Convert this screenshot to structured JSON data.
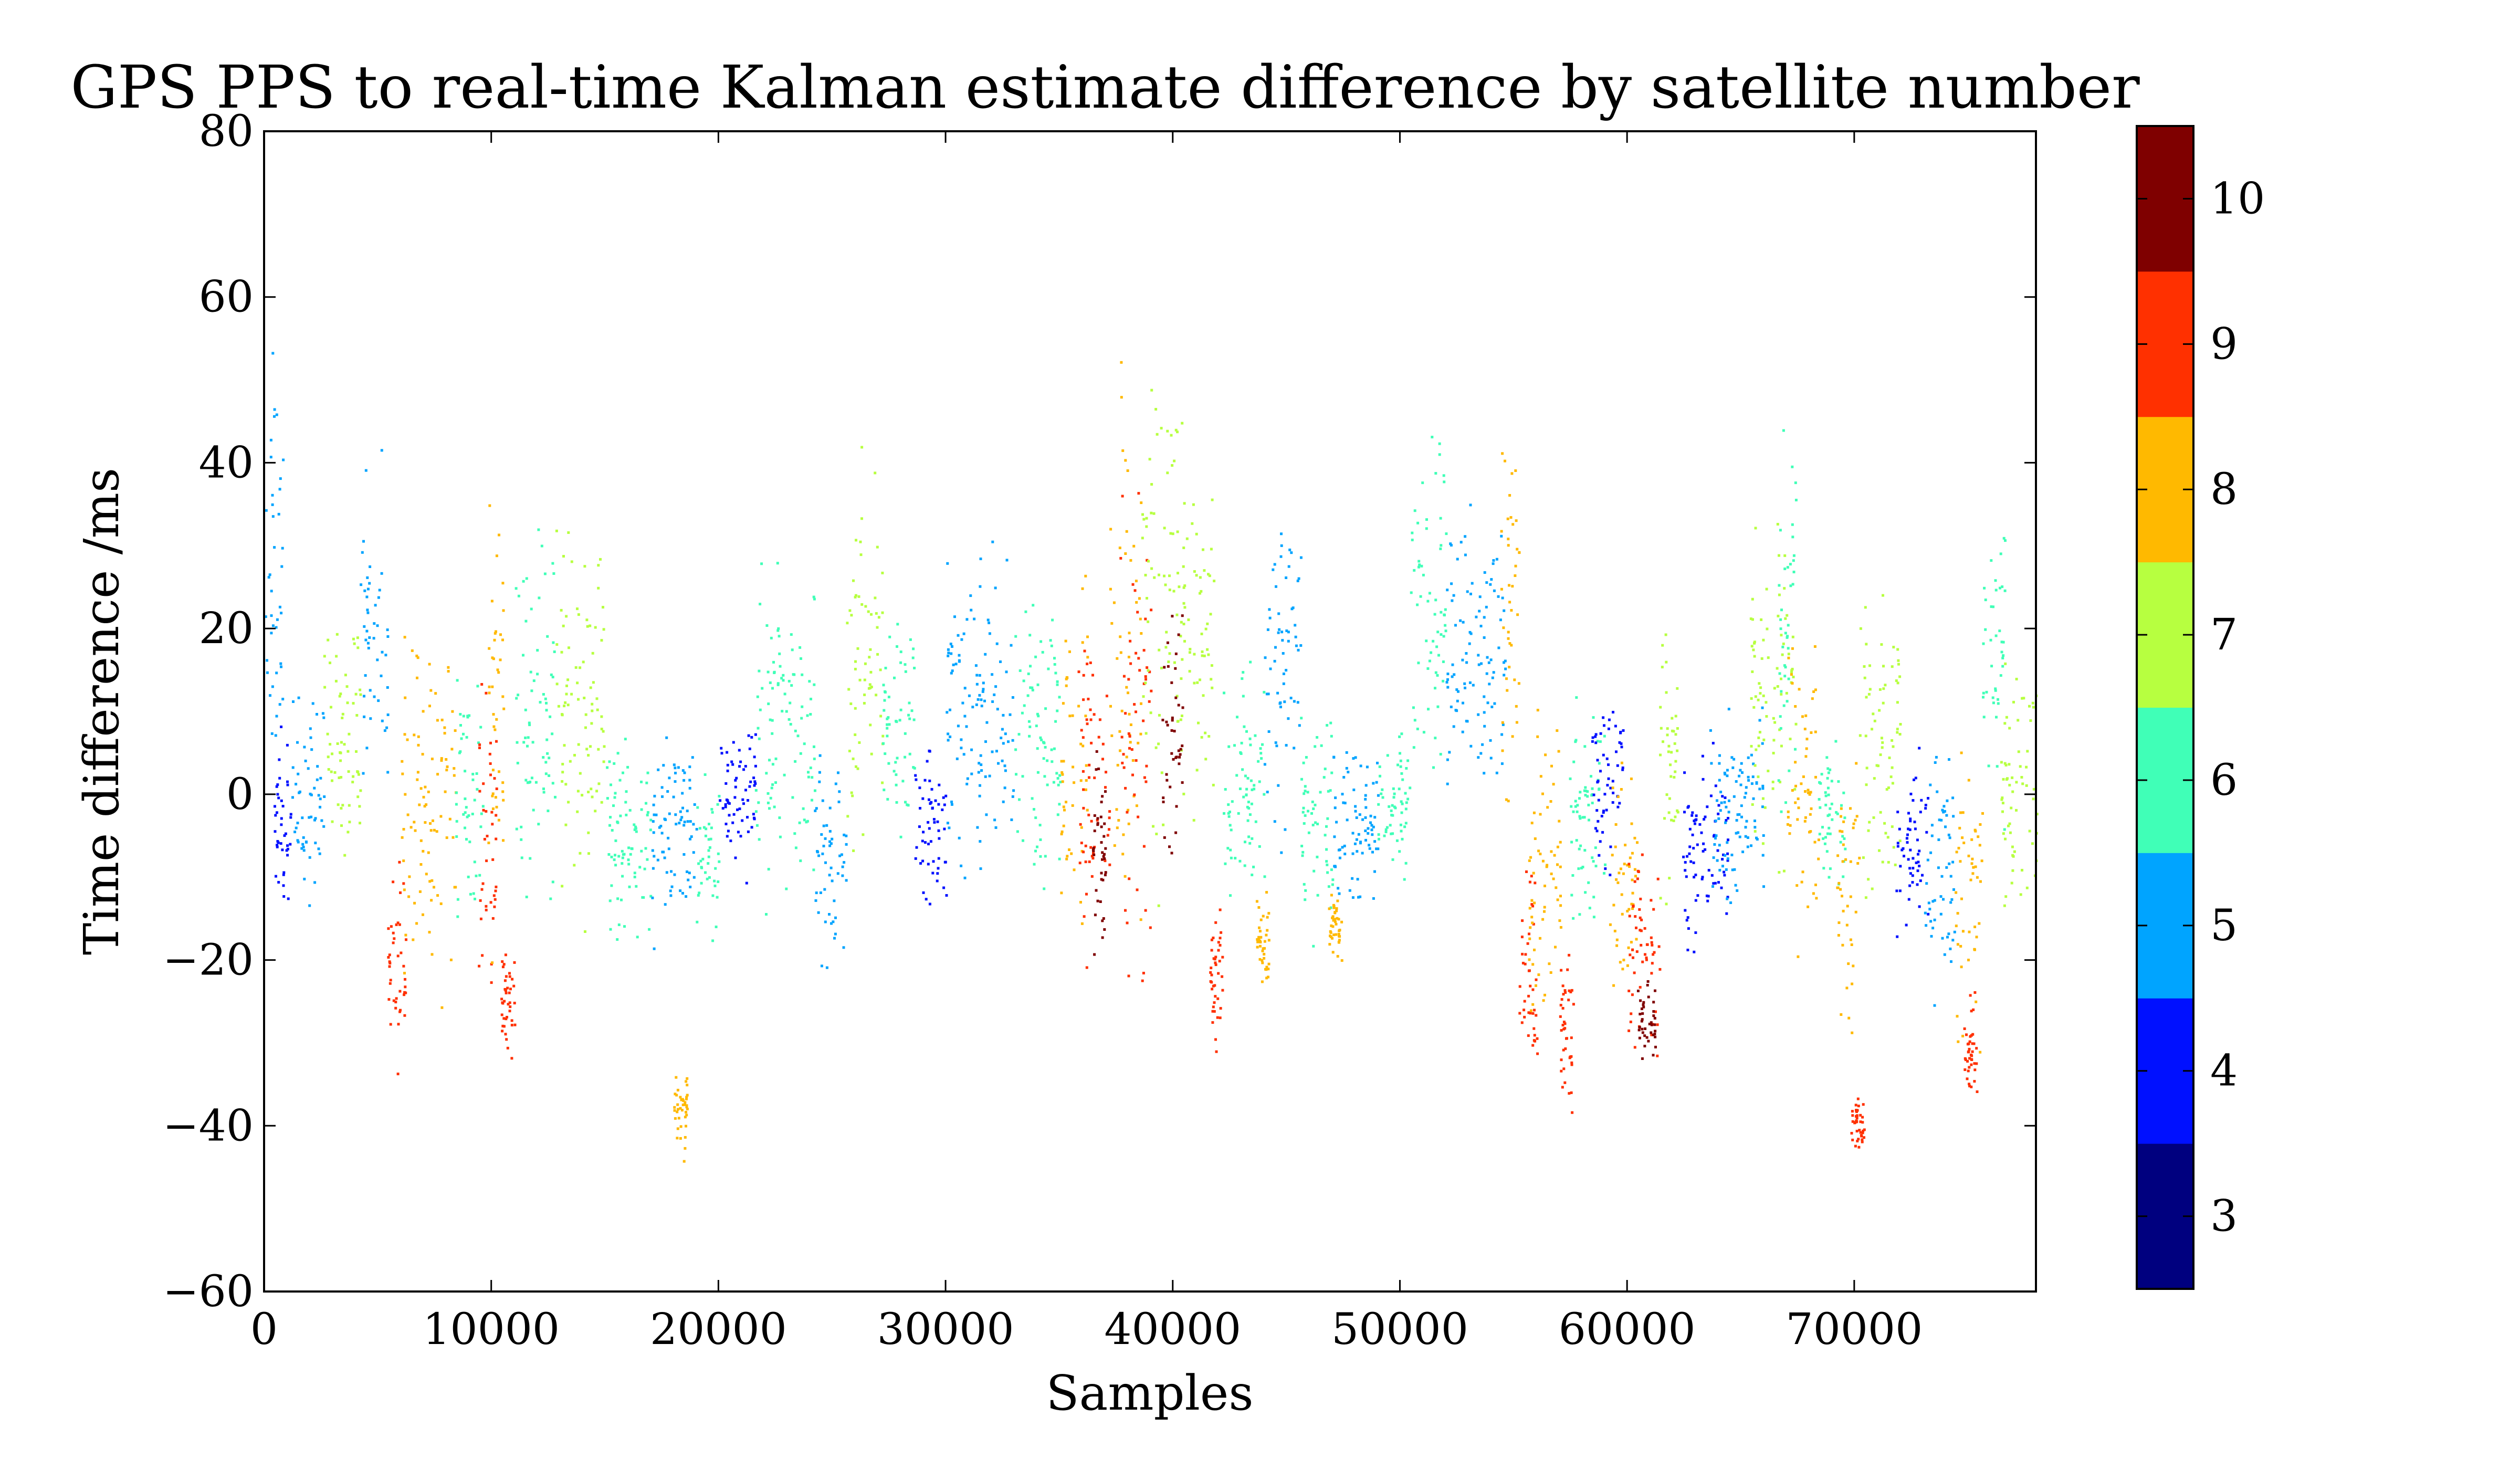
{
  "chart_data": {
    "type": "scatter",
    "title": "GPS PPS to real-time Kalman estimate difference by satellite number",
    "xlabel": "Samples",
    "ylabel": "Time difference /ms",
    "xlim": [
      0,
      78000
    ],
    "ylim": [
      -60,
      80
    ],
    "xticks": [
      0,
      10000,
      20000,
      30000,
      40000,
      50000,
      60000,
      70000
    ],
    "yticks": [
      -60,
      -40,
      -20,
      0,
      20,
      40,
      60,
      80
    ],
    "grid": false,
    "colorbar": {
      "label": "",
      "min": 2.5,
      "max": 10.5,
      "ticks": [
        3,
        4,
        5,
        6,
        7,
        8,
        9,
        10
      ],
      "bins": [
        {
          "value": 3,
          "color": "#00007f"
        },
        {
          "value": 4,
          "color": "#0010ff"
        },
        {
          "value": 5,
          "color": "#00a4ff"
        },
        {
          "value": 6,
          "color": "#40ffb7"
        },
        {
          "value": 7,
          "color": "#b7ff40"
        },
        {
          "value": 8,
          "color": "#ffb900"
        },
        {
          "value": 9,
          "color": "#ff3000"
        },
        {
          "value": 10,
          "color": "#7f0000"
        }
      ]
    },
    "segments": [
      {
        "x": [
          0,
          800
        ],
        "y_low": -5,
        "y_high": 62,
        "sat": 5
      },
      {
        "x": [
          400,
          1200
        ],
        "y_low": -18,
        "y_high": 10,
        "sat": 4
      },
      {
        "x": [
          1200,
          2600
        ],
        "y_low": -18,
        "y_high": 15,
        "sat": 5
      },
      {
        "x": [
          2600,
          4200
        ],
        "y_low": -14,
        "y_high": 30,
        "sat": 7
      },
      {
        "x": [
          4200,
          5400
        ],
        "y_low": -6,
        "y_high": 45,
        "sat": 5
      },
      {
        "x": [
          5400,
          6200
        ],
        "y_low": -36,
        "y_high": -5,
        "sat": 9
      },
      {
        "x": [
          6000,
          8400
        ],
        "y_low": -30,
        "y_high": 30,
        "sat": 8
      },
      {
        "x": [
          8400,
          9600
        ],
        "y_low": -20,
        "y_high": 20,
        "sat": 6
      },
      {
        "x": [
          9400,
          10200
        ],
        "y_low": -32,
        "y_high": 20,
        "sat": 9
      },
      {
        "x": [
          9800,
          10500
        ],
        "y_low": -30,
        "y_high": 45,
        "sat": 8
      },
      {
        "x": [
          10400,
          11000
        ],
        "y_low": -35,
        "y_high": -15,
        "sat": 9
      },
      {
        "x": [
          11000,
          12800
        ],
        "y_low": -18,
        "y_high": 40,
        "sat": 6
      },
      {
        "x": [
          12800,
          15000
        ],
        "y_low": -22,
        "y_high": 40,
        "sat": 7
      },
      {
        "x": [
          15000,
          17000
        ],
        "y_low": -22,
        "y_high": 10,
        "sat": 6
      },
      {
        "x": [
          17000,
          19000
        ],
        "y_low": -20,
        "y_high": 10,
        "sat": 5
      },
      {
        "x": [
          18000,
          18600
        ],
        "y_low": -46,
        "y_high": -30,
        "sat": 8
      },
      {
        "x": [
          19000,
          20000
        ],
        "y_low": -22,
        "y_high": 5,
        "sat": 6
      },
      {
        "x": [
          20000,
          21600
        ],
        "y_low": -12,
        "y_high": 14,
        "sat": 4
      },
      {
        "x": [
          21600,
          24200
        ],
        "y_low": -18,
        "y_high": 35,
        "sat": 6
      },
      {
        "x": [
          24200,
          25600
        ],
        "y_low": -25,
        "y_high": 12,
        "sat": 5
      },
      {
        "x": [
          25600,
          27200
        ],
        "y_low": -12,
        "y_high": 45,
        "sat": 7
      },
      {
        "x": [
          27200,
          28600
        ],
        "y_low": -10,
        "y_high": 25,
        "sat": 6
      },
      {
        "x": [
          28600,
          30000
        ],
        "y_low": -18,
        "y_high": 10,
        "sat": 4
      },
      {
        "x": [
          30000,
          33000
        ],
        "y_low": -15,
        "y_high": 36,
        "sat": 5
      },
      {
        "x": [
          33000,
          35000
        ],
        "y_low": -18,
        "y_high": 30,
        "sat": 6
      },
      {
        "x": [
          35000,
          36200
        ],
        "y_low": -30,
        "y_high": 40,
        "sat": 8
      },
      {
        "x": [
          35800,
          37200
        ],
        "y_low": -32,
        "y_high": 35,
        "sat": 9
      },
      {
        "x": [
          36400,
          37000
        ],
        "y_low": -28,
        "y_high": 10,
        "sat": 10
      },
      {
        "x": [
          37200,
          38600
        ],
        "y_low": -25,
        "y_high": 55,
        "sat": 8
      },
      {
        "x": [
          37600,
          39000
        ],
        "y_low": -30,
        "y_high": 45,
        "sat": 9
      },
      {
        "x": [
          38600,
          40400
        ],
        "y_low": -18,
        "y_high": 60,
        "sat": 7
      },
      {
        "x": [
          39400,
          40400
        ],
        "y_low": -18,
        "y_high": 32,
        "sat": 10
      },
      {
        "x": [
          40400,
          41800
        ],
        "y_low": -15,
        "y_high": 52,
        "sat": 7
      },
      {
        "x": [
          41600,
          42200
        ],
        "y_low": -34,
        "y_high": -10,
        "sat": 9
      },
      {
        "x": [
          42200,
          44000
        ],
        "y_low": -20,
        "y_high": 20,
        "sat": 6
      },
      {
        "x": [
          43600,
          44200
        ],
        "y_low": -25,
        "y_high": -10,
        "sat": 8
      },
      {
        "x": [
          44000,
          45600
        ],
        "y_low": -15,
        "y_high": 45,
        "sat": 5
      },
      {
        "x": [
          45600,
          47000
        ],
        "y_low": -20,
        "y_high": 15,
        "sat": 6
      },
      {
        "x": [
          46800,
          47400
        ],
        "y_low": -22,
        "y_high": -10,
        "sat": 8
      },
      {
        "x": [
          47000,
          49000
        ],
        "y_low": -18,
        "y_high": 12,
        "sat": 5
      },
      {
        "x": [
          49000,
          50400
        ],
        "y_low": -12,
        "y_high": 10,
        "sat": 6
      },
      {
        "x": [
          50400,
          52000
        ],
        "y_low": -10,
        "y_high": 50,
        "sat": 6
      },
      {
        "x": [
          52000,
          54600
        ],
        "y_low": -6,
        "y_high": 40,
        "sat": 5
      },
      {
        "x": [
          54400,
          55200
        ],
        "y_low": -10,
        "y_high": 53,
        "sat": 8
      },
      {
        "x": [
          55200,
          56000
        ],
        "y_low": -38,
        "y_high": -5,
        "sat": 9
      },
      {
        "x": [
          55600,
          57200
        ],
        "y_low": -35,
        "y_high": 15,
        "sat": 8
      },
      {
        "x": [
          57000,
          57600
        ],
        "y_low": -42,
        "y_high": -15,
        "sat": 9
      },
      {
        "x": [
          57400,
          59000
        ],
        "y_low": -25,
        "y_high": 20,
        "sat": 6
      },
      {
        "x": [
          58400,
          59800
        ],
        "y_low": -12,
        "y_high": 16,
        "sat": 4
      },
      {
        "x": [
          59200,
          60400
        ],
        "y_low": -30,
        "y_high": 8,
        "sat": 8
      },
      {
        "x": [
          60000,
          61400
        ],
        "y_low": -38,
        "y_high": 0,
        "sat": 9
      },
      {
        "x": [
          60400,
          61200
        ],
        "y_low": -35,
        "y_high": -20,
        "sat": 10
      },
      {
        "x": [
          61400,
          62200
        ],
        "y_low": -20,
        "y_high": 30,
        "sat": 7
      },
      {
        "x": [
          62400,
          64400
        ],
        "y_low": -22,
        "y_high": 8,
        "sat": 4
      },
      {
        "x": [
          63600,
          66000
        ],
        "y_low": -20,
        "y_high": 15,
        "sat": 5
      },
      {
        "x": [
          65400,
          67400
        ],
        "y_low": -15,
        "y_high": 40,
        "sat": 7
      },
      {
        "x": [
          66600,
          67400
        ],
        "y_low": -10,
        "y_high": 53,
        "sat": 6
      },
      {
        "x": [
          67000,
          68400
        ],
        "y_low": -27,
        "y_high": 30,
        "sat": 8
      },
      {
        "x": [
          68400,
          69600
        ],
        "y_low": -15,
        "y_high": 8,
        "sat": 6
      },
      {
        "x": [
          69200,
          70200
        ],
        "y_low": -35,
        "y_high": 10,
        "sat": 8
      },
      {
        "x": [
          69800,
          70400
        ],
        "y_low": -45,
        "y_high": -35,
        "sat": 9
      },
      {
        "x": [
          70200,
          72000
        ],
        "y_low": -20,
        "y_high": 30,
        "sat": 7
      },
      {
        "x": [
          71800,
          73200
        ],
        "y_low": -20,
        "y_high": 10,
        "sat": 4
      },
      {
        "x": [
          73000,
          74400
        ],
        "y_low": -28,
        "y_high": 12,
        "sat": 5
      },
      {
        "x": [
          74400,
          75600
        ],
        "y_low": -35,
        "y_high": 10,
        "sat": 8
      },
      {
        "x": [
          74800,
          75400
        ],
        "y_low": -40,
        "y_high": -20,
        "sat": 9
      },
      {
        "x": [
          75600,
          76600
        ],
        "y_low": -10,
        "y_high": 45,
        "sat": 6
      },
      {
        "x": [
          76400,
          78000
        ],
        "y_low": -20,
        "y_high": 20,
        "sat": 7
      }
    ]
  }
}
